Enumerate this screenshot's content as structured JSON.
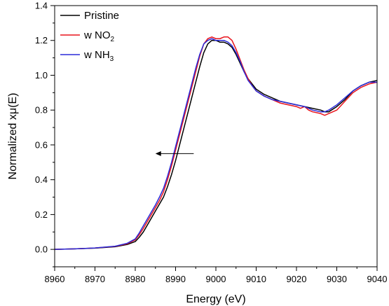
{
  "chart_data": {
    "type": "line",
    "title": "",
    "xlabel": "Energy (eV)",
    "ylabel": "Normalized xμ(E)",
    "xlim": [
      8960,
      9040
    ],
    "ylim": [
      -0.1,
      1.4
    ],
    "xticks": [
      8960,
      8970,
      8980,
      8990,
      9000,
      9010,
      9020,
      9030,
      9040
    ],
    "yticks": [
      0.0,
      0.2,
      0.4,
      0.6,
      0.8,
      1.0,
      1.2,
      1.4
    ],
    "ytick_labels": [
      "0.0",
      "0.2",
      "0.4",
      "0.6",
      "0.8",
      "1.0",
      "1.2",
      "1.4"
    ],
    "grid": false,
    "legend_position": "top-left",
    "series": [
      {
        "name": "Pristine",
        "legend_main": "Pristine",
        "legend_sub": "",
        "legend_tail": "",
        "color": "#000000",
        "x": [
          8960,
          8965,
          8970,
          8975,
          8978,
          8980,
          8981,
          8982,
          8983,
          8984,
          8985,
          8986,
          8987,
          8988,
          8989,
          8990,
          8991,
          8992,
          8993,
          8994,
          8995,
          8996,
          8997,
          8998,
          8999,
          9000,
          9001,
          9002,
          9003,
          9004,
          9005,
          9006,
          9007,
          9008,
          9009,
          9010,
          9012,
          9014,
          9016,
          9018,
          9020,
          9022,
          9024,
          9026,
          9027,
          9028,
          9030,
          9032,
          9034,
          9036,
          9038,
          9040
        ],
        "y": [
          0.0,
          0.003,
          0.007,
          0.015,
          0.028,
          0.045,
          0.07,
          0.1,
          0.14,
          0.18,
          0.22,
          0.26,
          0.3,
          0.36,
          0.43,
          0.51,
          0.6,
          0.69,
          0.78,
          0.87,
          0.96,
          1.05,
          1.13,
          1.18,
          1.2,
          1.2,
          1.19,
          1.19,
          1.18,
          1.16,
          1.12,
          1.07,
          1.02,
          0.98,
          0.95,
          0.92,
          0.89,
          0.87,
          0.85,
          0.84,
          0.83,
          0.82,
          0.81,
          0.8,
          0.79,
          0.79,
          0.82,
          0.86,
          0.91,
          0.94,
          0.96,
          0.97
        ]
      },
      {
        "name": "w NO2",
        "legend_main": "w NO",
        "legend_sub": "2",
        "legend_tail": "",
        "color": "#e8141c",
        "x": [
          8960,
          8965,
          8970,
          8975,
          8978,
          8980,
          8981,
          8982,
          8983,
          8984,
          8985,
          8986,
          8987,
          8988,
          8989,
          8990,
          8991,
          8992,
          8993,
          8994,
          8995,
          8996,
          8997,
          8998,
          8999,
          9000,
          9001,
          9002,
          9003,
          9004,
          9005,
          9006,
          9007,
          9008,
          9009,
          9010,
          9012,
          9014,
          9016,
          9018,
          9020,
          9021,
          9022,
          9023,
          9024,
          9026,
          9027,
          9028,
          9030,
          9032,
          9034,
          9036,
          9038,
          9040
        ],
        "y": [
          0.0,
          0.003,
          0.008,
          0.017,
          0.032,
          0.055,
          0.085,
          0.12,
          0.16,
          0.2,
          0.24,
          0.28,
          0.33,
          0.4,
          0.48,
          0.57,
          0.66,
          0.75,
          0.84,
          0.93,
          1.02,
          1.11,
          1.18,
          1.21,
          1.22,
          1.21,
          1.21,
          1.22,
          1.22,
          1.2,
          1.15,
          1.09,
          1.03,
          0.98,
          0.94,
          0.91,
          0.88,
          0.86,
          0.84,
          0.83,
          0.82,
          0.81,
          0.82,
          0.8,
          0.79,
          0.78,
          0.77,
          0.78,
          0.8,
          0.85,
          0.9,
          0.93,
          0.95,
          0.96
        ]
      },
      {
        "name": "w NH3",
        "legend_main": "w NH",
        "legend_sub": "3",
        "legend_tail": "",
        "color": "#2a2ad8",
        "x": [
          8960,
          8965,
          8970,
          8975,
          8978,
          8980,
          8981,
          8982,
          8983,
          8984,
          8985,
          8986,
          8987,
          8988,
          8989,
          8990,
          8991,
          8992,
          8993,
          8994,
          8995,
          8996,
          8997,
          8998,
          8999,
          9000,
          9001,
          9002,
          9003,
          9004,
          9005,
          9006,
          9007,
          9008,
          9009,
          9010,
          9012,
          9014,
          9016,
          9018,
          9020,
          9022,
          9024,
          9026,
          9027,
          9028,
          9030,
          9032,
          9034,
          9036,
          9038,
          9040
        ],
        "y": [
          0.0,
          0.003,
          0.008,
          0.018,
          0.035,
          0.06,
          0.095,
          0.135,
          0.175,
          0.215,
          0.255,
          0.3,
          0.35,
          0.42,
          0.5,
          0.59,
          0.68,
          0.77,
          0.86,
          0.95,
          1.04,
          1.12,
          1.18,
          1.2,
          1.21,
          1.2,
          1.2,
          1.2,
          1.19,
          1.17,
          1.13,
          1.08,
          1.02,
          0.97,
          0.94,
          0.91,
          0.88,
          0.86,
          0.85,
          0.84,
          0.83,
          0.82,
          0.8,
          0.79,
          0.79,
          0.8,
          0.83,
          0.87,
          0.91,
          0.94,
          0.96,
          0.96
        ]
      }
    ],
    "annotations": [
      {
        "type": "arrow",
        "from": [
          8994.5,
          0.55
        ],
        "to": [
          8985,
          0.55
        ],
        "color": "#000000"
      }
    ]
  }
}
